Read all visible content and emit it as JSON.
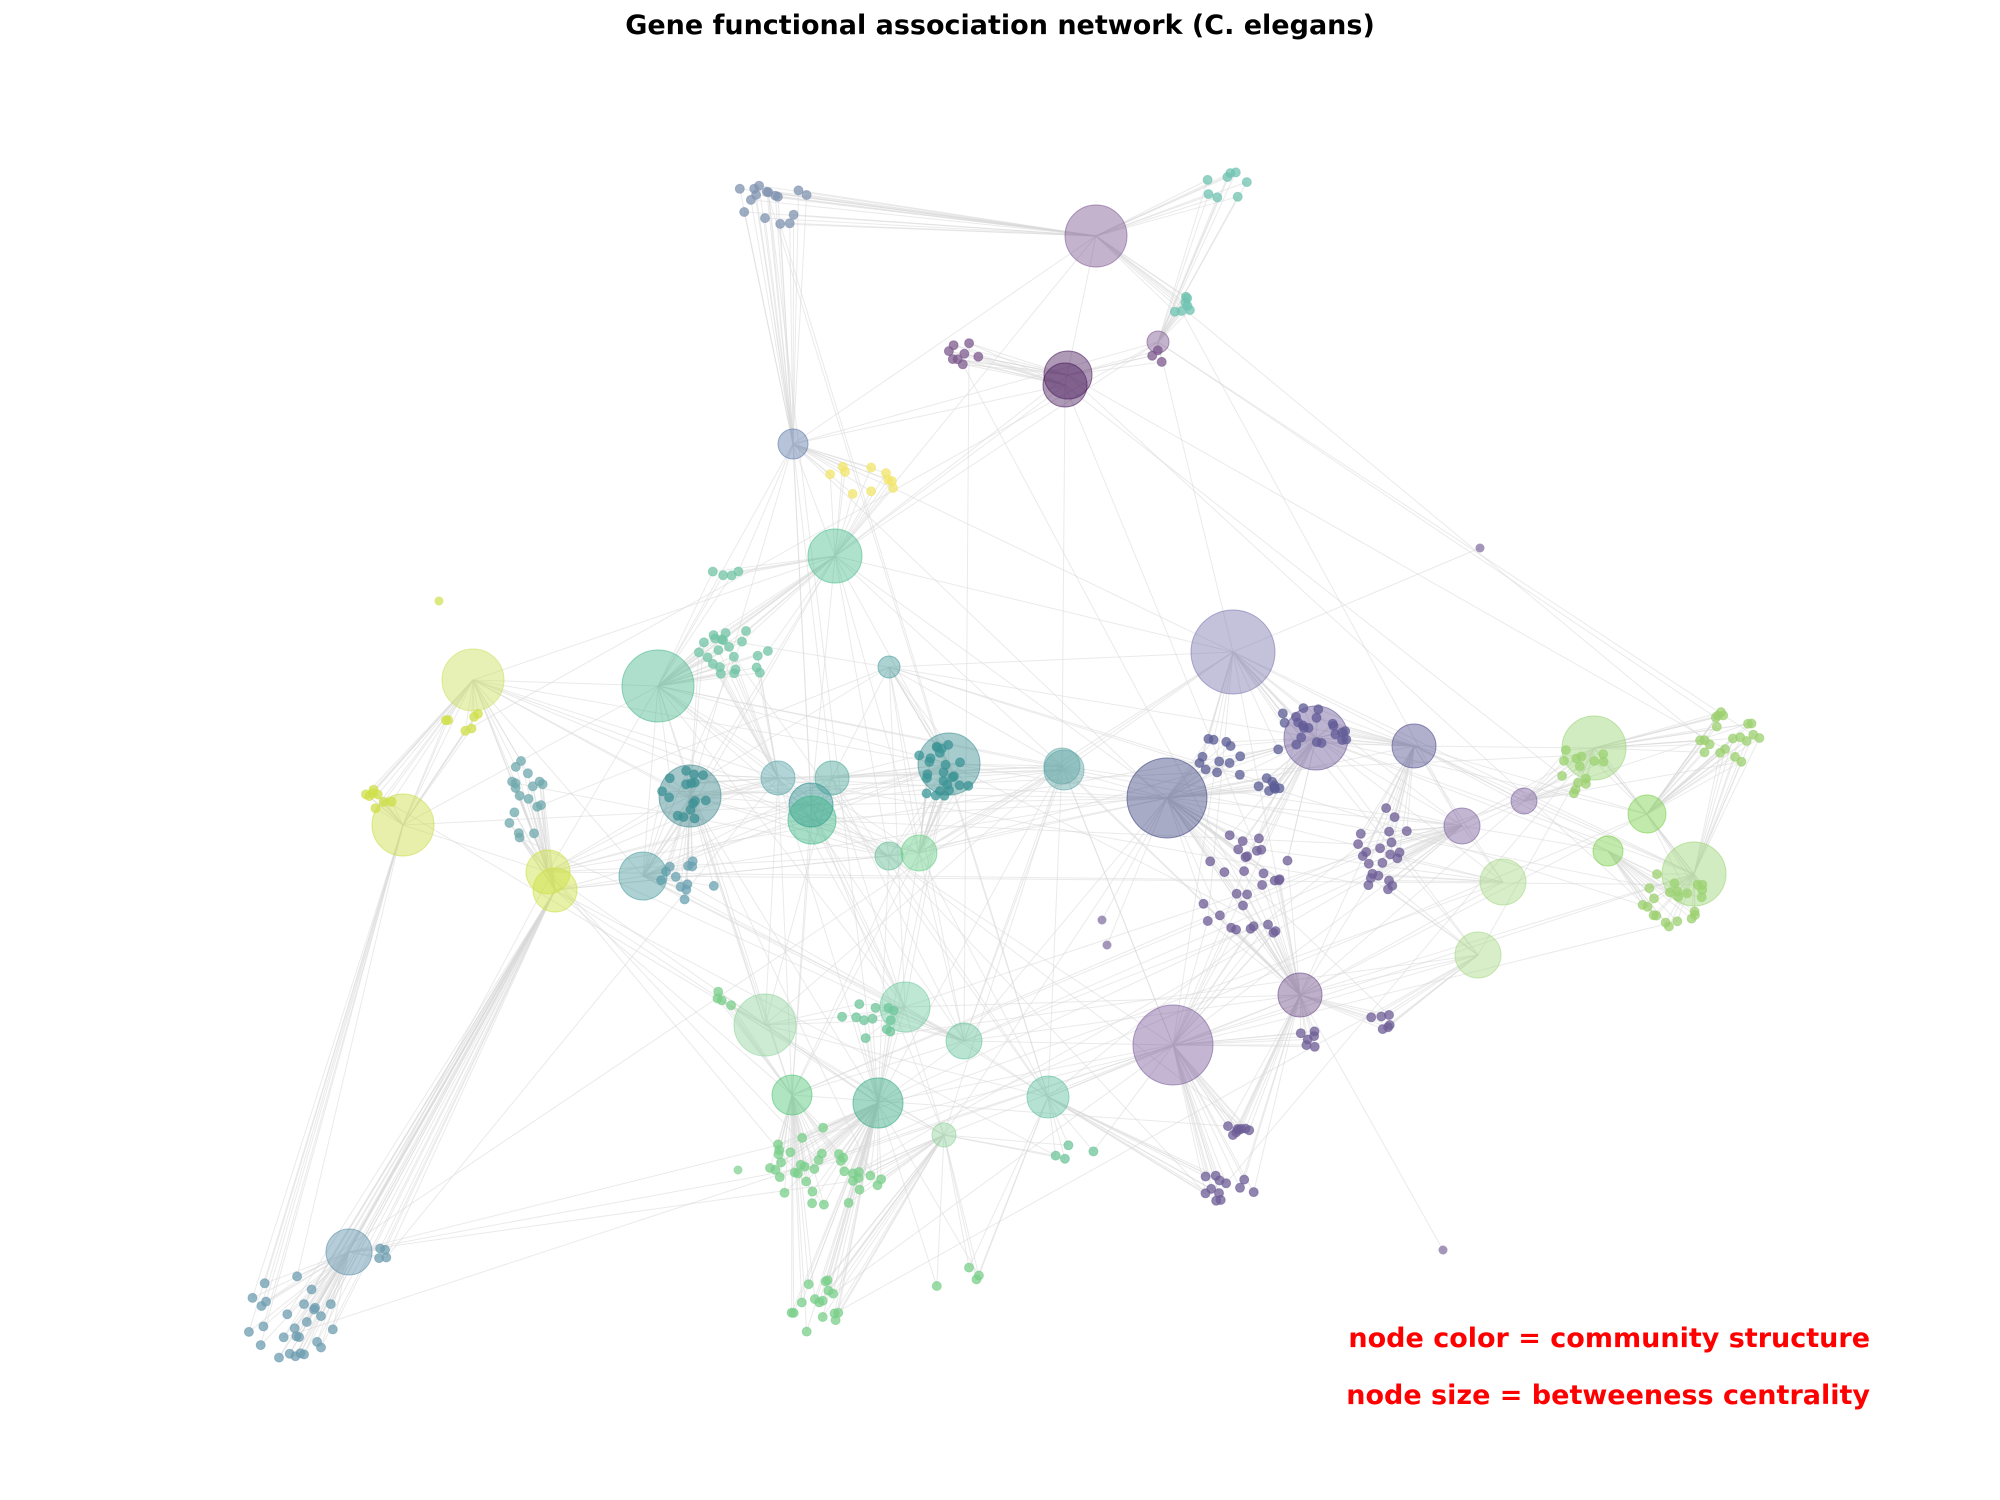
{
  "title": "Gene functional association network (C. elegans)",
  "legend": {
    "color_text": "node color = community structure",
    "size_text": "node size = betweeness centrality",
    "text_color": "#ff0000"
  },
  "style": {
    "edge_color": "#d9d9d9",
    "node_opacity": 0.45,
    "palette": "viridis"
  },
  "chart_data": {
    "type": "network",
    "node_color_encodes": "community structure",
    "node_size_encodes": "betweeness centrality"
  }
}
